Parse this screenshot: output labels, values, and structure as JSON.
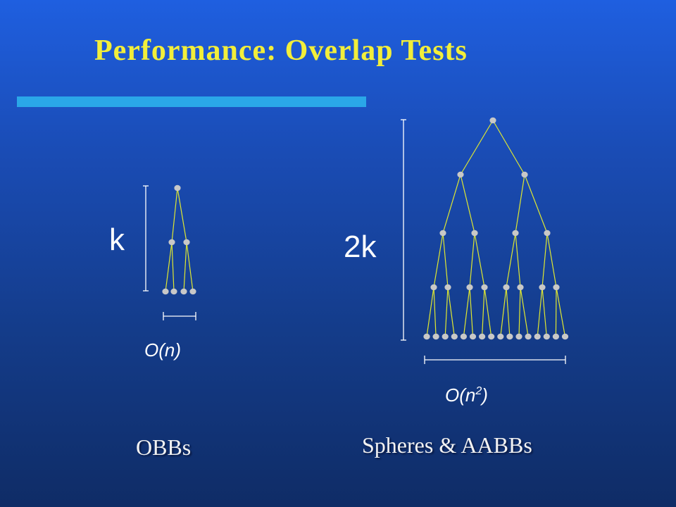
{
  "slide": {
    "title": "Performance: Overlap Tests",
    "accent_color": "#f2ee3a",
    "rule_color": "#2aa7e8"
  },
  "obb": {
    "height_label": "k",
    "width_label": "O(n)",
    "caption": "OBBs"
  },
  "sphere": {
    "height_label": "2k",
    "width_base": "O(n",
    "width_exp": "2",
    "width_close": ")",
    "caption": "Spheres & AABBs"
  },
  "colors": {
    "edge": "#e0e830",
    "node": "#c8c8c8",
    "bracket": "#ffffff"
  }
}
